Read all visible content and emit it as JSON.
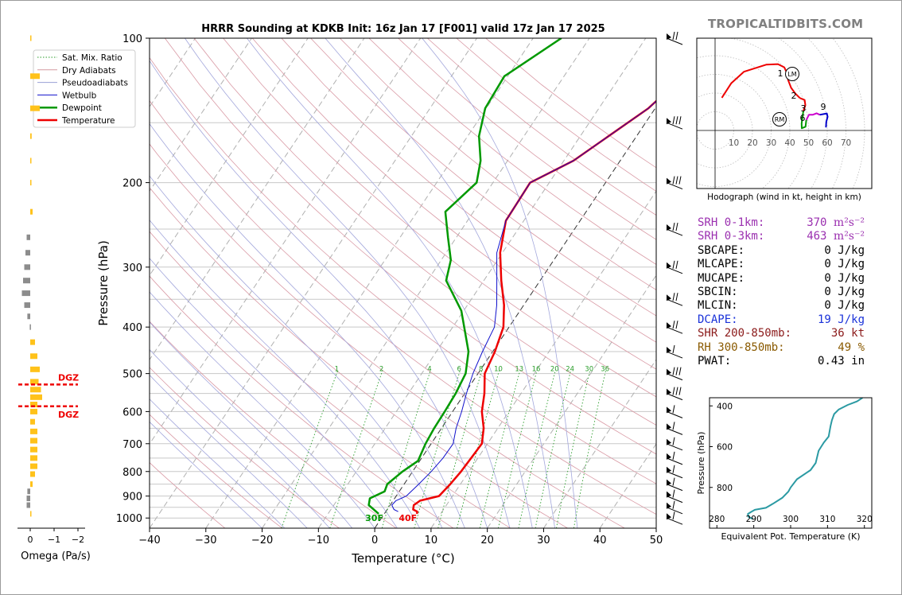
{
  "chart_data": [
    {
      "type": "line",
      "title": "HRRR Sounding at KDKB Init: 16z Jan 17 [F001] valid 17z Jan 17 2025",
      "xlabel": "Temperature (°C)",
      "ylabel": "Pressure (hPa)",
      "xlim": [
        -40,
        50
      ],
      "ylim": [
        1050,
        100
      ],
      "y_scale": "log",
      "skew": "skew-T log-p",
      "x_ticks": [
        "−40",
        "−30",
        "−20",
        "−10",
        "0",
        "10",
        "20",
        "30",
        "40",
        "50"
      ],
      "y_ticks": [
        "100",
        "200",
        "300",
        "400",
        "500",
        "600",
        "700",
        "800",
        "900",
        "1000"
      ],
      "grid": true,
      "legend": {
        "placement": "top-left",
        "entries": [
          {
            "name": "Sat. Mix. Ratio",
            "color": "#2a9d2a",
            "style": "dotted"
          },
          {
            "name": "Dry Adiabats",
            "color": "#d49aa0",
            "style": "solid"
          },
          {
            "name": "Pseudoadiabats",
            "color": "#9aa0d4",
            "style": "solid"
          },
          {
            "name": "Wetbulb",
            "color": "#1010cc",
            "style": "solid"
          },
          {
            "name": "Dewpoint",
            "color": "#009900",
            "style": "solid"
          },
          {
            "name": "Temperature",
            "color": "#ee0000",
            "style": "solid"
          }
        ]
      },
      "series": [
        {
          "name": "Temperature",
          "color": "#ee0000",
          "points": [
            [
              4.0,
              100
            ],
            [
              -1.2,
              140
            ],
            [
              -8.3,
              180
            ],
            [
              -13.4,
              200
            ],
            [
              -13.2,
              240
            ],
            [
              -10.4,
              280
            ],
            [
              -6.9,
              320
            ],
            [
              -3.5,
              360
            ],
            [
              -1.0,
              400
            ],
            [
              0.4,
              450
            ],
            [
              1.2,
              500
            ],
            [
              3.5,
              550
            ],
            [
              5.2,
              600
            ],
            [
              7.5,
              650
            ],
            [
              9.0,
              700
            ],
            [
              8.8,
              750
            ],
            [
              8.6,
              800
            ],
            [
              8.2,
              850
            ],
            [
              7.6,
              900
            ],
            [
              4.8,
              920
            ],
            [
              4.2,
              940
            ],
            [
              4.6,
              960
            ],
            [
              5.6,
              970
            ],
            [
              5.8,
              980
            ]
          ]
        },
        {
          "name": "Wetbulb",
          "color": "#1010cc",
          "points": [
            [
              4.0,
              100
            ],
            [
              -1.2,
              140
            ],
            [
              -8.3,
              180
            ],
            [
              -13.4,
              200
            ],
            [
              -13.2,
              240
            ],
            [
              -11.0,
              280
            ],
            [
              -7.7,
              320
            ],
            [
              -4.8,
              360
            ],
            [
              -2.6,
              400
            ],
            [
              -1.8,
              450
            ],
            [
              -0.9,
              500
            ],
            [
              0.3,
              550
            ],
            [
              1.6,
              600
            ],
            [
              2.6,
              650
            ],
            [
              3.9,
              700
            ],
            [
              3.8,
              750
            ],
            [
              3.3,
              800
            ],
            [
              2.6,
              850
            ],
            [
              1.8,
              900
            ],
            [
              0.5,
              920
            ],
            [
              0.3,
              940
            ],
            [
              1.2,
              960
            ],
            [
              2.2,
              970
            ]
          ]
        },
        {
          "name": "Dewpoint",
          "color": "#009900",
          "points": [
            [
              -25.0,
              100
            ],
            [
              -30.6,
              120
            ],
            [
              -30.2,
              140
            ],
            [
              -28.0,
              160
            ],
            [
              -24.8,
              180
            ],
            [
              -22.9,
              200
            ],
            [
              -25.0,
              230
            ],
            [
              -21.5,
              260
            ],
            [
              -18.3,
              290
            ],
            [
              -16.7,
              320
            ],
            [
              -10.4,
              370
            ],
            [
              -4.3,
              450
            ],
            [
              -2.2,
              500
            ],
            [
              -1.6,
              550
            ],
            [
              -1.4,
              600
            ],
            [
              -1.3,
              650
            ],
            [
              -1.0,
              700
            ],
            [
              -0.3,
              760
            ],
            [
              -1.8,
              800
            ],
            [
              -3.0,
              850
            ],
            [
              -2.6,
              880
            ],
            [
              -4.4,
              910
            ],
            [
              -3.8,
              940
            ],
            [
              -1.0,
              980
            ]
          ]
        }
      ],
      "annotations": [
        "30F",
        "40F",
        "1",
        "2",
        "4",
        "6",
        "8",
        "10",
        "13",
        "16",
        "20",
        "24",
        "30",
        "36"
      ],
      "wind_barbs": "right margin, 100–1000 hPa"
    },
    {
      "type": "line",
      "title": "",
      "xlabel": "Hodograph (wind in kt, height in km)",
      "ylabel": "",
      "ring_labels": [
        "10",
        "20",
        "30",
        "40",
        "50",
        "60",
        "70"
      ],
      "height_labels": [
        "1",
        "2",
        "3",
        "6",
        "9"
      ],
      "markers": [
        "LM",
        "RM"
      ],
      "series": [
        {
          "name": "0-1 km",
          "color": "#ee0000",
          "points": [
            [
              3.6,
              17.5
            ],
            [
              8.6,
              25.2
            ],
            [
              15.4,
              31.4
            ],
            [
              27.3,
              35.2
            ],
            [
              33.6,
              35.5
            ],
            [
              37.0,
              33.8
            ],
            [
              38.6,
              30.4
            ],
            [
              39.1,
              26.9
            ],
            [
              40.7,
              22.8
            ],
            [
              42.9,
              19.8
            ],
            [
              45.4,
              17.3
            ]
          ]
        },
        {
          "name": "1-3 km",
          "color": "#ee0000",
          "points": [
            [
              45.4,
              17.3
            ],
            [
              47.9,
              16.3
            ],
            [
              48.3,
              13.5
            ],
            [
              47.2,
              10.2
            ]
          ]
        },
        {
          "name": "3-6 km",
          "color": "#009900",
          "points": [
            [
              47.2,
              10.2
            ],
            [
              46.8,
              7.4
            ],
            [
              46.3,
              3.8
            ],
            [
              46.4,
              1.2
            ],
            [
              48.4,
              2.0
            ],
            [
              48.8,
              5.6
            ]
          ]
        },
        {
          "name": "6-9 km",
          "color": "#cc00cc",
          "points": [
            [
              48.8,
              5.6
            ],
            [
              50.2,
              8.4
            ],
            [
              52.2,
              8.4
            ],
            [
              54.3,
              9.2
            ],
            [
              56.0,
              8.4
            ]
          ]
        },
        {
          "name": "9+ km",
          "color": "#0000cc",
          "points": [
            [
              56.0,
              8.4
            ],
            [
              59.8,
              9.1
            ],
            [
              60.2,
              7.3
            ],
            [
              59.5,
              4.6
            ],
            [
              59.3,
              1.6
            ]
          ]
        }
      ]
    },
    {
      "type": "line",
      "title": "",
      "xlabel": "Equivalent Pot. Temperature (K)",
      "ylabel": "Pressure (hPa)",
      "xlim": [
        278,
        322
      ],
      "ylim": [
        1000,
        360
      ],
      "x_ticks": [
        "280",
        "290",
        "300",
        "310",
        "320"
      ],
      "y_ticks": [
        "400",
        "600",
        "800"
      ],
      "series": [
        {
          "name": "Equivalent Pot. Temperature",
          "color": "#2b9aa3",
          "points": [
            [
              319.5,
              360
            ],
            [
              318.0,
              378
            ],
            [
              315.5,
              395
            ],
            [
              313.0,
              418
            ],
            [
              311.8,
              440
            ],
            [
              311.2,
              470
            ],
            [
              310.8,
              500
            ],
            [
              310.3,
              550
            ],
            [
              309.0,
              580
            ],
            [
              307.6,
              620
            ],
            [
              306.8,
              680
            ],
            [
              305.4,
              715
            ],
            [
              301.7,
              760
            ],
            [
              300.0,
              800
            ],
            [
              299.4,
              820
            ],
            [
              297.8,
              850
            ],
            [
              295.2,
              880
            ],
            [
              293.3,
              900
            ],
            [
              290.3,
              910
            ],
            [
              289.3,
              920
            ],
            [
              288.4,
              930
            ],
            [
              288.6,
              945
            ],
            [
              289.8,
              955
            ]
          ]
        }
      ]
    },
    {
      "type": "bar",
      "title": "",
      "xlabel": "Omega (Pa/s)",
      "x_ticks": [
        "0",
        "−1",
        "−2"
      ],
      "dgz_label": "DGZ",
      "dgz_color": "#ee0000",
      "values_note": "horizontal omega profile beside the pressure axis"
    }
  ],
  "stats": [
    {
      "label": "SRH 0-1km:",
      "value": "370",
      "unit": "m²s⁻²",
      "color": "#9b30b0"
    },
    {
      "label": "SRH 0-3km:",
      "value": "463",
      "unit": "m²s⁻²",
      "color": "#9b30b0"
    },
    {
      "label": "SBCAPE:",
      "value": "0",
      "unit": "J/kg",
      "color": "#000000"
    },
    {
      "label": "MLCAPE:",
      "value": "0",
      "unit": "J/kg",
      "color": "#000000"
    },
    {
      "label": "MUCAPE:",
      "value": "0",
      "unit": "J/kg",
      "color": "#000000"
    },
    {
      "label": "SBCIN:",
      "value": "0",
      "unit": "J/kg",
      "color": "#000000"
    },
    {
      "label": "MLCIN:",
      "value": "0",
      "unit": "J/kg",
      "color": "#000000"
    },
    {
      "label": "DCAPE:",
      "value": "19",
      "unit": "J/kg",
      "color": "#1a32d9"
    },
    {
      "label": "SHR 200-850mb:",
      "value": "36",
      "unit": "kt",
      "color": "#8b1a1a"
    },
    {
      "label": "RH 300-850mb:",
      "value": "49",
      "unit": "%",
      "color": "#8a5a00"
    },
    {
      "label": "PWAT:",
      "value": "0.43",
      "unit": "in",
      "color": "#000000"
    }
  ],
  "watermark": "TROPICALTIDBITS.COM"
}
